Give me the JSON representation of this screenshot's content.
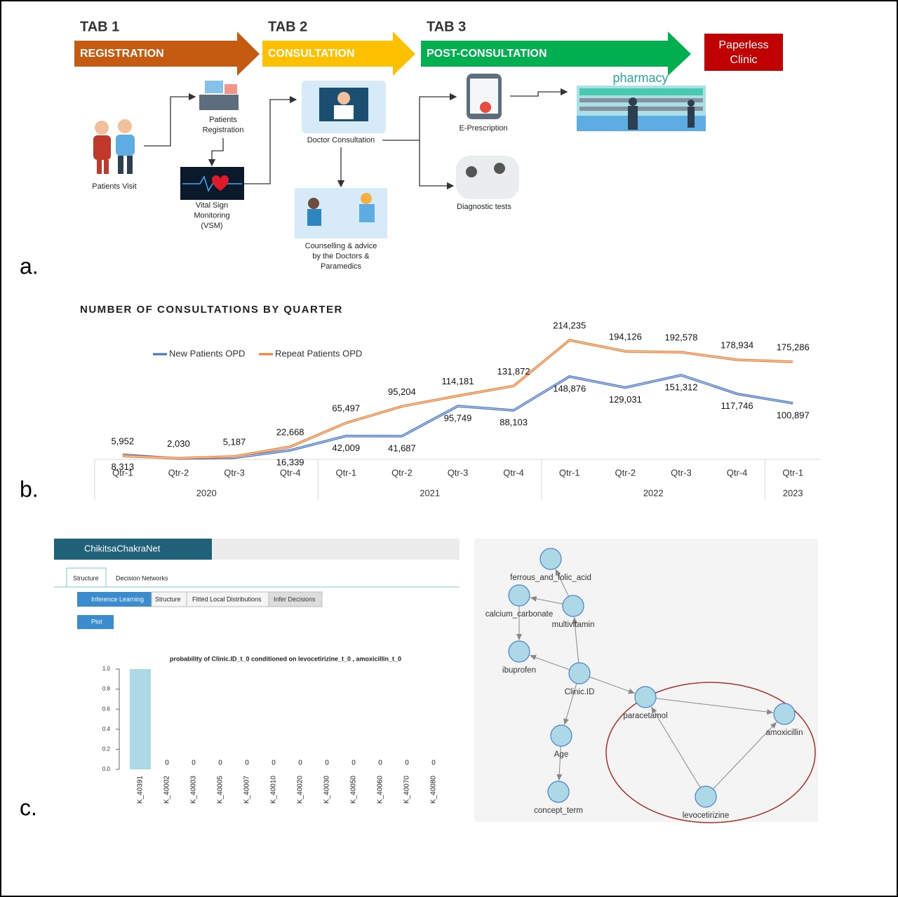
{
  "workflow": {
    "tabs": [
      {
        "tab": "TAB 1",
        "stage": "REGISTRATION"
      },
      {
        "tab": "TAB 2",
        "stage": "CONSULTATION"
      },
      {
        "tab": "TAB 3",
        "stage": "POST-CONSULTATION"
      }
    ],
    "end": [
      "Paperless",
      "Clinic"
    ],
    "steps": [
      [
        "Patients Visit"
      ],
      [
        "Patients",
        "Registration"
      ],
      [
        "Vital Sign",
        "Monitoring",
        "(VSM)"
      ],
      [
        "Doctor Consultation"
      ],
      [
        "Counselling & advice",
        "by the Doctors &",
        "Paramedics"
      ],
      [
        "E-Prescription"
      ],
      [
        "Diagnostic tests"
      ],
      [
        "pharmacy"
      ]
    ]
  },
  "panel_labels": [
    "a.",
    "b.",
    "c."
  ],
  "chart_data": [
    {
      "type": "line",
      "title": "NUMBER OF CONSULTATIONS BY QUARTER",
      "categories": [
        "Qtr-1",
        "Qtr-2",
        "Qtr-3",
        "Qtr-4",
        "Qtr-1",
        "Qtr-2",
        "Qtr-3",
        "Qtr-4",
        "Qtr-1",
        "Qtr-2",
        "Qtr-3",
        "Qtr-4",
        "Qtr-1"
      ],
      "groups": [
        "2020",
        null,
        null,
        null,
        "2021",
        null,
        null,
        null,
        "2022",
        null,
        null,
        null,
        "2023"
      ],
      "ylim": [
        0,
        230000
      ],
      "series": [
        {
          "name": "New Patients OPD",
          "color": "#4472c4",
          "values": [
            8313,
            1500,
            3000,
            16339,
            42009,
            41687,
            95749,
            88103,
            148876,
            129031,
            151312,
            117746,
            100897
          ],
          "value_labels": [
            "8,313",
            null,
            null,
            "16,339",
            "42,009",
            "41,687",
            "95,749",
            "88,103",
            "148,876",
            "129,031",
            "151,312",
            "117,746",
            "100,897"
          ]
        },
        {
          "name": "Repeat Patients OPD",
          "color": "#ed7d31",
          "values": [
            5952,
            2030,
            5187,
            22668,
            65497,
            95204,
            114181,
            131872,
            214235,
            194126,
            192578,
            178934,
            175286
          ],
          "value_labels": [
            "5,952",
            "2,030",
            "5,187",
            "22,668",
            "65,497",
            "95,204",
            "114,181",
            "131,872",
            "214,235",
            "194,126",
            "192,578",
            "178,934",
            "175,286"
          ]
        }
      ]
    },
    {
      "type": "bar",
      "title": "probability of  Clinic.ID_t_0  conditioned on  levocetirizine_t_0 ,  amoxicillin_t_0",
      "categories": [
        "K_40391",
        "K_40002",
        "K_40003",
        "K_40005",
        "K_40007",
        "K_40010",
        "K_40020",
        "K_40030",
        "K_40050",
        "K_40060",
        "K_40070",
        "K_40080"
      ],
      "values": [
        1,
        0,
        0,
        0,
        0,
        0,
        0,
        0,
        0,
        0,
        0,
        0
      ],
      "value_labels": [
        null,
        "0",
        "0",
        "0",
        "0",
        "0",
        "0",
        "0",
        "0",
        "0",
        "0",
        "0"
      ],
      "color": "#add8e6",
      "ylim": [
        0,
        1
      ],
      "yticks": [
        {
          "value": 0,
          "label": "0.0"
        },
        0.2,
        0.4,
        0.6,
        0.8,
        {
          "value": 1,
          "label": "1.0"
        }
      ]
    }
  ],
  "app": {
    "brand": "ChikitsaChakraNet",
    "tabs": [
      "Structure",
      "Decision Networks"
    ],
    "buttons": [
      "Inference Learning",
      "Structure",
      "Fitted Local Distributions",
      "Infer Decisions"
    ],
    "plot_button": "Plot"
  },
  "network": {
    "nodes": [
      "ferrous_and_folic_acid",
      "calcium_carbonate",
      "multivitamin",
      "ibuprofen",
      "Clinic.ID",
      "paracetamol",
      "amoxicillin",
      "Age",
      "concept_term",
      "levocetirizine"
    ]
  }
}
